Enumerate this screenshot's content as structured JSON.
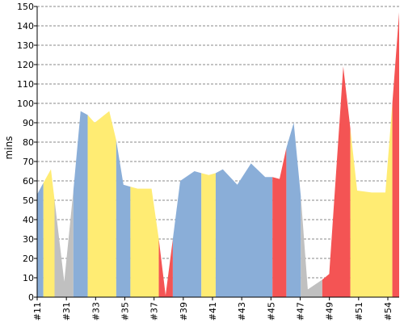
{
  "chart_data": {
    "type": "area",
    "ylabel": "mins",
    "ylim": [
      0,
      150
    ],
    "ytick_step": 10,
    "grid": true,
    "x_labels": [
      "#11",
      "#31",
      "#33",
      "#35",
      "#37",
      "#39",
      "#41",
      "#43",
      "#45",
      "#47",
      "#49",
      "#51",
      "#54"
    ],
    "colors": {
      "blue": "#8aaed8",
      "yellow": "#ffec73",
      "gray": "#c0c0c0",
      "red": "#f45454"
    },
    "points": [
      {
        "x": 0,
        "y": 53
      },
      {
        "x": 0.43,
        "y": 59
      },
      {
        "x": 0.95,
        "y": 66
      },
      {
        "x": 1.87,
        "y": 8
      },
      {
        "x": 2.5,
        "y": 55
      },
      {
        "x": 3.0,
        "y": 96
      },
      {
        "x": 3.49,
        "y": 94
      },
      {
        "x": 3.97,
        "y": 90
      },
      {
        "x": 4.98,
        "y": 96
      },
      {
        "x": 5.46,
        "y": 81
      },
      {
        "x": 5.96,
        "y": 58
      },
      {
        "x": 6.44,
        "y": 57
      },
      {
        "x": 6.94,
        "y": 56
      },
      {
        "x": 7.9,
        "y": 56
      },
      {
        "x": 8.4,
        "y": 30
      },
      {
        "x": 8.87,
        "y": 1
      },
      {
        "x": 9.37,
        "y": 30
      },
      {
        "x": 9.88,
        "y": 60
      },
      {
        "x": 10.86,
        "y": 65
      },
      {
        "x": 11.34,
        "y": 64
      },
      {
        "x": 11.85,
        "y": 63
      },
      {
        "x": 12.33,
        "y": 64
      },
      {
        "x": 12.82,
        "y": 66
      },
      {
        "x": 13.82,
        "y": 58
      },
      {
        "x": 14.77,
        "y": 69
      },
      {
        "x": 15.75,
        "y": 62
      },
      {
        "x": 16.25,
        "y": 62
      },
      {
        "x": 16.74,
        "y": 61
      },
      {
        "x": 17.21,
        "y": 77
      },
      {
        "x": 17.72,
        "y": 90
      },
      {
        "x": 18.21,
        "y": 52
      },
      {
        "x": 18.69,
        "y": 4
      },
      {
        "x": 19.69,
        "y": 9
      },
      {
        "x": 20.17,
        "y": 12
      },
      {
        "x": 21.14,
        "y": 119
      },
      {
        "x": 21.63,
        "y": 87
      },
      {
        "x": 22.1,
        "y": 55
      },
      {
        "x": 23.1,
        "y": 54
      },
      {
        "x": 24.05,
        "y": 54
      },
      {
        "x": 24.53,
        "y": 100
      },
      {
        "x": 25.0,
        "y": 147
      }
    ],
    "segments": [
      {
        "from": 0,
        "to": 0.43,
        "color": "blue"
      },
      {
        "from": 0.43,
        "to": 1.2,
        "color": "yellow"
      },
      {
        "from": 1.2,
        "to": 2.5,
        "color": "gray"
      },
      {
        "from": 2.5,
        "to": 3.49,
        "color": "blue"
      },
      {
        "from": 3.49,
        "to": 5.46,
        "color": "yellow"
      },
      {
        "from": 5.46,
        "to": 6.44,
        "color": "blue"
      },
      {
        "from": 6.44,
        "to": 8.4,
        "color": "yellow"
      },
      {
        "from": 8.4,
        "to": 9.37,
        "color": "red"
      },
      {
        "from": 9.37,
        "to": 11.34,
        "color": "blue"
      },
      {
        "from": 11.34,
        "to": 12.33,
        "color": "yellow"
      },
      {
        "from": 12.33,
        "to": 16.25,
        "color": "blue"
      },
      {
        "from": 16.25,
        "to": 17.21,
        "color": "red"
      },
      {
        "from": 17.21,
        "to": 18.21,
        "color": "blue"
      },
      {
        "from": 18.21,
        "to": 19.69,
        "color": "gray"
      },
      {
        "from": 19.69,
        "to": 21.63,
        "color": "red"
      },
      {
        "from": 21.63,
        "to": 24.53,
        "color": "yellow"
      },
      {
        "from": 24.53,
        "to": 25.0,
        "color": "red"
      }
    ]
  }
}
